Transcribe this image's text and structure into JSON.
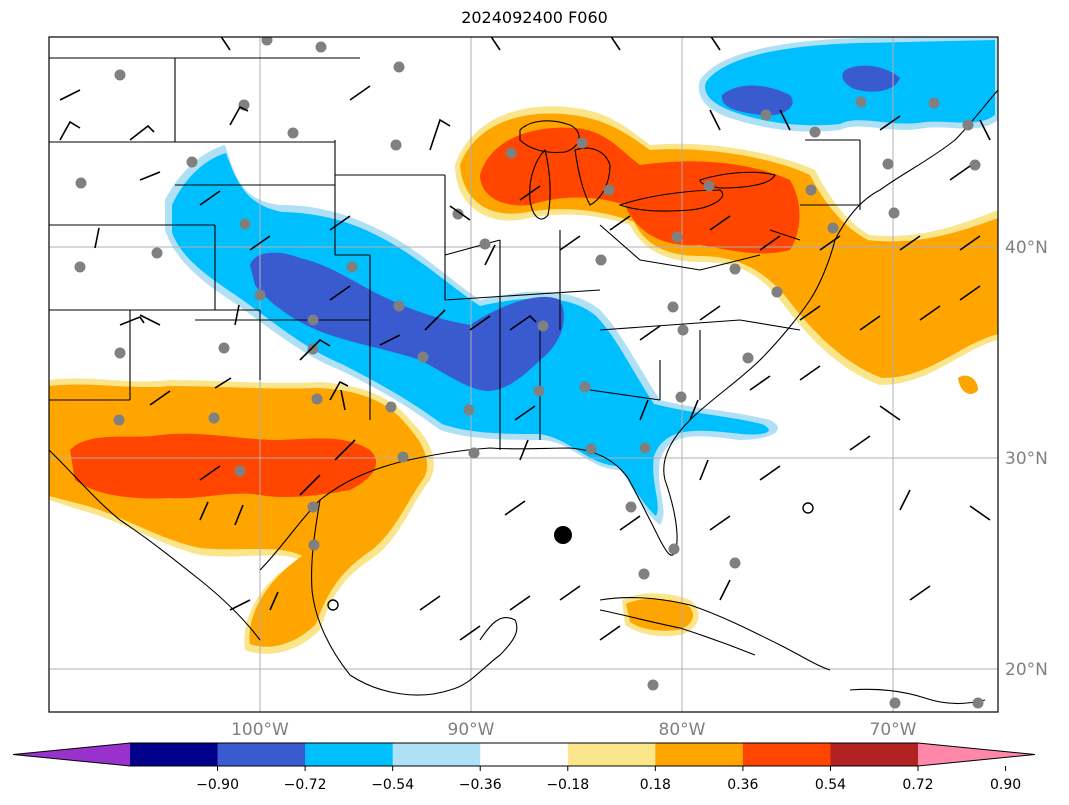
{
  "title": "2024092400 F060",
  "lon_labels": [
    "100°W",
    "90°W",
    "80°W",
    "70°W"
  ],
  "lat_labels": [
    "40°N",
    "30°N",
    "20°N"
  ],
  "colorbar": {
    "ticks": [
      "−0.90",
      "−0.72",
      "−0.54",
      "−0.36",
      "−0.18",
      "0.18",
      "0.36",
      "0.54",
      "0.72",
      "0.90"
    ],
    "bins": [
      {
        "color": "#9932cc"
      },
      {
        "color": "#00008b"
      },
      {
        "color": "#3a5bd0"
      },
      {
        "color": "#00bfff"
      },
      {
        "color": "#b0e0f5"
      },
      {
        "color": "#ffffff"
      },
      {
        "color": "#fbe58a"
      },
      {
        "color": "#ffa500"
      },
      {
        "color": "#ff4500"
      },
      {
        "color": "#b22222"
      },
      {
        "color": "#ff88aa"
      }
    ]
  },
  "colors": {
    "orange": "#ffa500",
    "red_orange": "#ff4500",
    "blue": "#3a5bd0",
    "sky": "#00bfff",
    "light_blue": "#b0e0f5",
    "yellow": "#fbe58a",
    "station": "#808080",
    "grid": "#b0b0b0"
  }
}
